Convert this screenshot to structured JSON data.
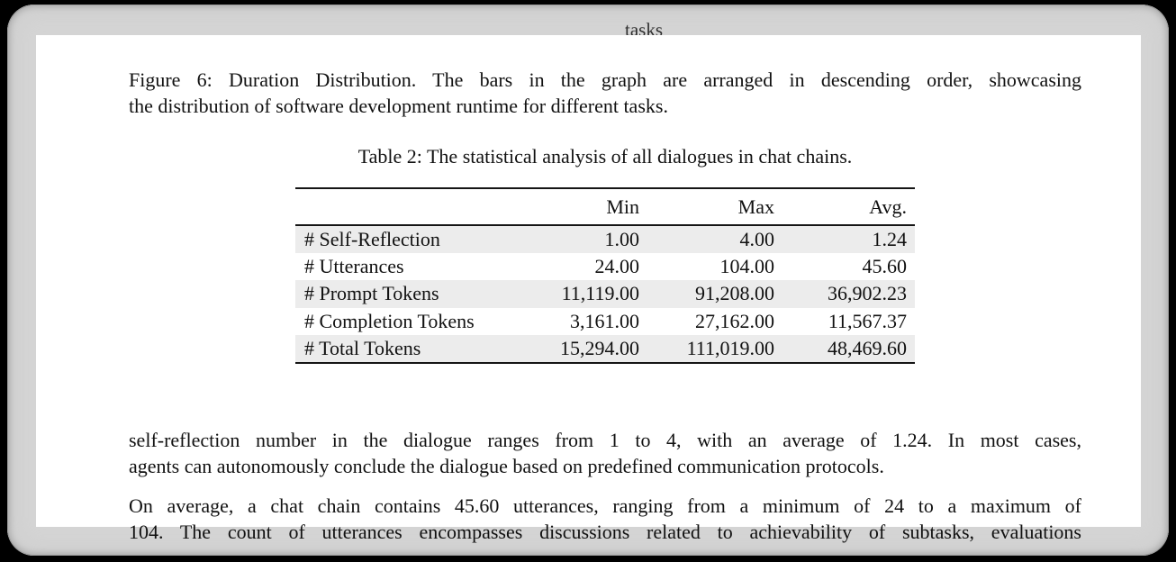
{
  "window": {
    "clipped_top_text": "tasks"
  },
  "figure_caption": {
    "lines": [
      "Figure 6: Duration Distribution. The bars in the graph are arranged in descending order, showcasing",
      "the distribution of software development runtime for different tasks."
    ]
  },
  "table": {
    "caption": "Table 2: The statistical analysis of all dialogues in chat chains.",
    "columns": {
      "label": "",
      "min": "Min",
      "max": "Max",
      "avg": "Avg."
    },
    "rows": [
      {
        "label": "# Self-Reflection",
        "min": "1.00",
        "max": "4.00",
        "avg": "1.24"
      },
      {
        "label": "# Utterances",
        "min": "24.00",
        "max": "104.00",
        "avg": "45.60"
      },
      {
        "label": "# Prompt Tokens",
        "min": "11,119.00",
        "max": "91,208.00",
        "avg": "36,902.23"
      },
      {
        "label": "# Completion Tokens",
        "min": "3,161.00",
        "max": "27,162.00",
        "avg": "11,567.37"
      },
      {
        "label": "# Total Tokens",
        "min": "15,294.00",
        "max": "111,019.00",
        "avg": "48,469.60"
      }
    ],
    "stripe_color": "#ececec",
    "rule_color": "#151515"
  },
  "body": {
    "paragraph_1_lines": [
      "self-reflection number in the dialogue ranges from 1 to 4, with an average of 1.24. In most cases,",
      "agents can autonomously conclude the dialogue based on predefined communication protocols."
    ],
    "paragraph_2_lines": [
      "On average, a chat chain contains 45.60 utterances, ranging from a minimum of 24 to a maximum of",
      "104. The count of utterances encompasses discussions related to achievability of subtasks, evaluations"
    ]
  }
}
